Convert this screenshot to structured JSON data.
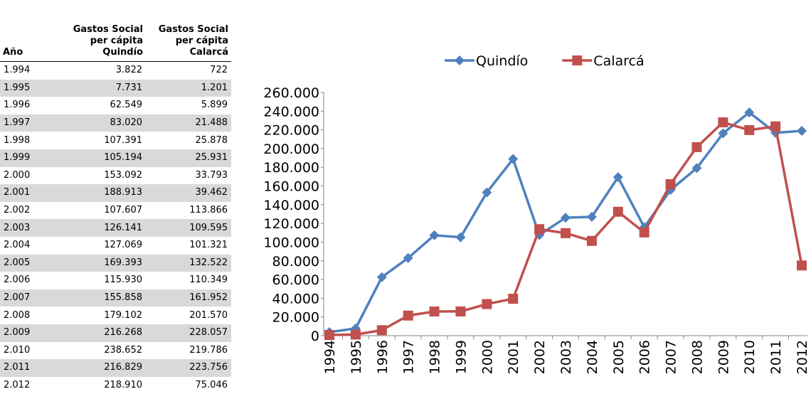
{
  "table": {
    "header": [
      "Año",
      "Gastos Social per cápita Quindío",
      "Gastos Social per cápita Calarcá"
    ],
    "rows": [
      [
        "1.994",
        "3.822",
        "722"
      ],
      [
        "1.995",
        "7.731",
        "1.201"
      ],
      [
        "1.996",
        "62.549",
        "5.899"
      ],
      [
        "1.997",
        "83.020",
        "21.488"
      ],
      [
        "1.998",
        "107.391",
        "25.878"
      ],
      [
        "1.999",
        "105.194",
        "25.931"
      ],
      [
        "2.000",
        "153.092",
        "33.793"
      ],
      [
        "2.001",
        "188.913",
        "39.462"
      ],
      [
        "2.002",
        "107.607",
        "113.866"
      ],
      [
        "2.003",
        "126.141",
        "109.595"
      ],
      [
        "2.004",
        "127.069",
        "101.321"
      ],
      [
        "2.005",
        "169.393",
        "132.522"
      ],
      [
        "2.006",
        "115.930",
        "110.349"
      ],
      [
        "2.007",
        "155.858",
        "161.952"
      ],
      [
        "2.008",
        "179.102",
        "201.570"
      ],
      [
        "2.009",
        "216.268",
        "228.057"
      ],
      [
        "2.010",
        "238.652",
        "219.786"
      ],
      [
        "2.011",
        "216.829",
        "223.756"
      ],
      [
        "2.012",
        "218.910",
        "75.046"
      ]
    ]
  },
  "chart_data": {
    "type": "line",
    "legend": "top",
    "categories": [
      "1994",
      "1995",
      "1996",
      "1997",
      "1998",
      "1999",
      "2000",
      "2001",
      "2002",
      "2003",
      "2004",
      "2005",
      "2006",
      "2007",
      "2008",
      "2009",
      "2010",
      "2011",
      "2012"
    ],
    "series": [
      {
        "name": "Quindío",
        "color": "#4f81bd",
        "marker": "diamond",
        "values": [
          3822,
          7731,
          62549,
          83020,
          107391,
          105194,
          153092,
          188913,
          107607,
          126141,
          127069,
          169393,
          115930,
          155858,
          179102,
          216268,
          238652,
          216829,
          218910
        ]
      },
      {
        "name": "Calarcá",
        "color": "#c0504d",
        "marker": "square",
        "values": [
          722,
          1201,
          5899,
          21488,
          25878,
          25931,
          33793,
          39462,
          113866,
          109595,
          101321,
          132522,
          110349,
          161952,
          201570,
          228057,
          219786,
          223756,
          75046
        ]
      }
    ],
    "ylim": [
      0,
      260000
    ],
    "yticks": [
      0,
      {
        "value": 20000,
        "label": "20.000"
      },
      {
        "value": 40000,
        "label": "40.000"
      },
      {
        "value": 60000,
        "label": "60.000"
      },
      {
        "value": 80000,
        "label": "80.000"
      },
      {
        "value": 100000,
        "label": "100.000"
      },
      {
        "value": 120000,
        "label": "120.000"
      },
      {
        "value": 140000,
        "label": "140.000"
      },
      {
        "value": 160000,
        "label": "160.000"
      },
      {
        "value": 180000,
        "label": "180.000"
      },
      {
        "value": 200000,
        "label": "200.000"
      },
      {
        "value": 220000,
        "label": "220.000"
      },
      {
        "value": 240000,
        "label": "240.000"
      },
      {
        "value": 260000,
        "label": "260.000"
      }
    ]
  }
}
